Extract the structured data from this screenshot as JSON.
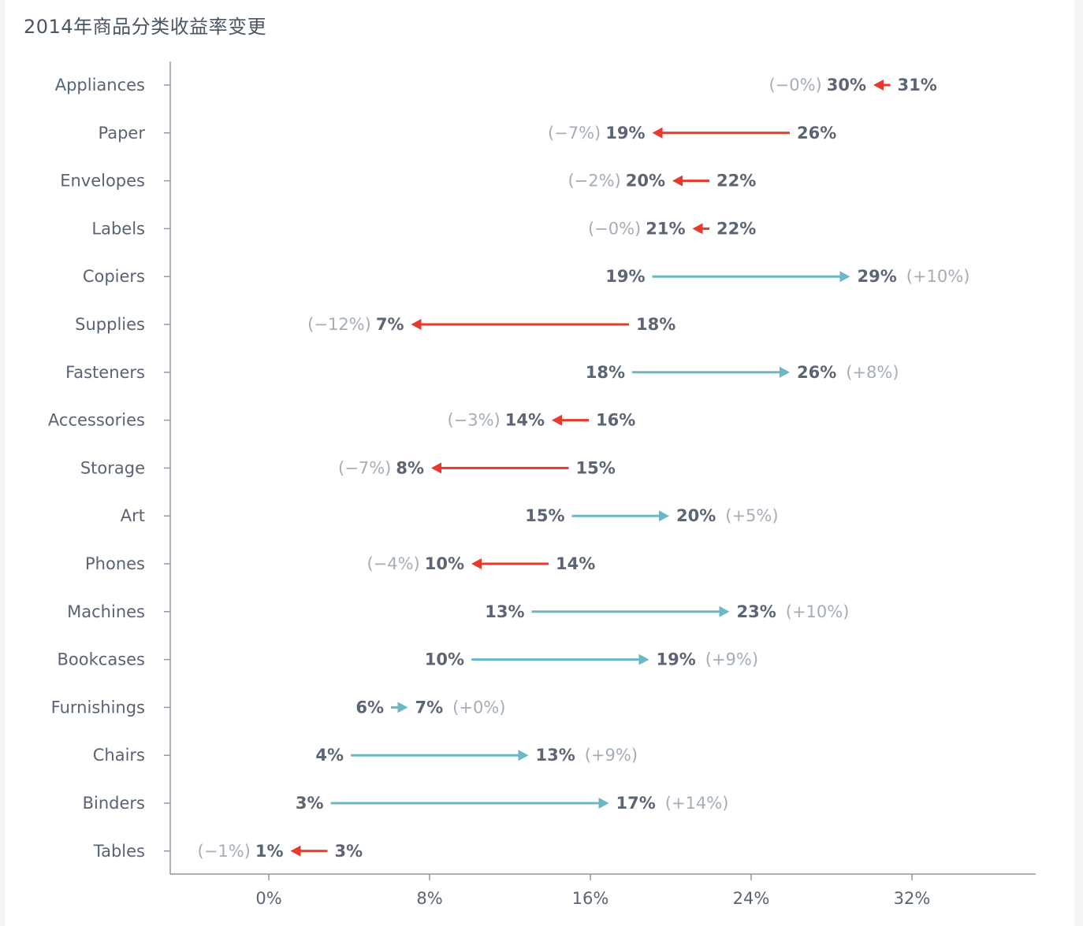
{
  "title": "2014年商品分类收益率变更",
  "colors": {
    "increase": "#6bb7c6",
    "decrease": "#e8392c",
    "axis": "#8e97a3"
  },
  "chart_data": {
    "type": "dumbbell-arrow",
    "title": "2014年商品分类收益率变更",
    "xlabel": "",
    "ylabel": "",
    "xlim": [
      -6,
      38
    ],
    "xticks": [
      0,
      8,
      16,
      24,
      32
    ],
    "xtick_labels": [
      "0%",
      "8%",
      "16%",
      "24%",
      "32%"
    ],
    "grid": false,
    "series": [
      {
        "category": "Appliances",
        "from": 31,
        "to": 30,
        "from_label": "31%",
        "to_label": "30%",
        "delta_label": "(−0%)"
      },
      {
        "category": "Paper",
        "from": 26,
        "to": 19,
        "from_label": "26%",
        "to_label": "19%",
        "delta_label": "(−7%)"
      },
      {
        "category": "Envelopes",
        "from": 22,
        "to": 20,
        "from_label": "22%",
        "to_label": "20%",
        "delta_label": "(−2%)"
      },
      {
        "category": "Labels",
        "from": 22,
        "to": 21,
        "from_label": "22%",
        "to_label": "21%",
        "delta_label": "(−0%)"
      },
      {
        "category": "Copiers",
        "from": 19,
        "to": 29,
        "from_label": "19%",
        "to_label": "29%",
        "delta_label": "(+10%)"
      },
      {
        "category": "Supplies",
        "from": 18,
        "to": 7,
        "from_label": "18%",
        "to_label": "7%",
        "delta_label": "(−12%)"
      },
      {
        "category": "Fasteners",
        "from": 18,
        "to": 26,
        "from_label": "18%",
        "to_label": "26%",
        "delta_label": "(+8%)"
      },
      {
        "category": "Accessories",
        "from": 16,
        "to": 14,
        "from_label": "16%",
        "to_label": "14%",
        "delta_label": "(−3%)"
      },
      {
        "category": "Storage",
        "from": 15,
        "to": 8,
        "from_label": "15%",
        "to_label": "8%",
        "delta_label": "(−7%)"
      },
      {
        "category": "Art",
        "from": 15,
        "to": 20,
        "from_label": "15%",
        "to_label": "20%",
        "delta_label": "(+5%)"
      },
      {
        "category": "Phones",
        "from": 14,
        "to": 10,
        "from_label": "14%",
        "to_label": "10%",
        "delta_label": "(−4%)"
      },
      {
        "category": "Machines",
        "from": 13,
        "to": 23,
        "from_label": "13%",
        "to_label": "23%",
        "delta_label": "(+10%)"
      },
      {
        "category": "Bookcases",
        "from": 10,
        "to": 19,
        "from_label": "10%",
        "to_label": "19%",
        "delta_label": "(+9%)"
      },
      {
        "category": "Furnishings",
        "from": 6,
        "to": 7,
        "from_label": "6%",
        "to_label": "7%",
        "delta_label": "(+0%)"
      },
      {
        "category": "Chairs",
        "from": 4,
        "to": 13,
        "from_label": "4%",
        "to_label": "13%",
        "delta_label": "(+9%)"
      },
      {
        "category": "Binders",
        "from": 3,
        "to": 17,
        "from_label": "3%",
        "to_label": "17%",
        "delta_label": "(+14%)"
      },
      {
        "category": "Tables",
        "from": 3,
        "to": 1,
        "from_label": "3%",
        "to_label": "1%",
        "delta_label": "(−1%)"
      }
    ]
  }
}
